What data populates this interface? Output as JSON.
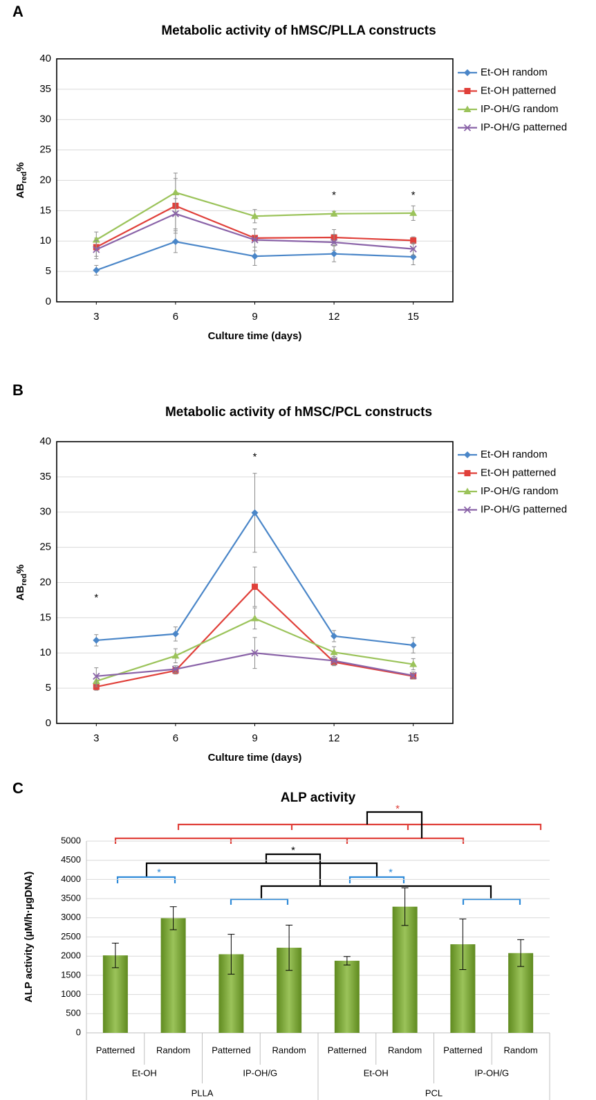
{
  "chart_data": [
    {
      "panel": "A",
      "type": "line",
      "title": "Metabolic activity of hMSC/PLLA constructs",
      "xlabel": "Culture time (days)",
      "ylabel": {
        "main": "AB",
        "sub": "red",
        "suffix": "%"
      },
      "x": [
        3,
        6,
        9,
        12,
        15
      ],
      "xlim": [
        1.5,
        16.5
      ],
      "xticks": [
        3,
        6,
        9,
        12,
        15
      ],
      "ylim": [
        0,
        40
      ],
      "yticks": [
        0,
        5,
        10,
        15,
        20,
        25,
        30,
        35,
        40
      ],
      "grid": true,
      "legend": "right",
      "series": [
        {
          "name": "Et-OH random",
          "color": "#4a86c8",
          "marker": "diamond",
          "values": [
            5.2,
            9.9,
            7.5,
            7.9,
            7.4
          ],
          "errors": [
            0.8,
            1.8,
            1.5,
            1.3,
            1.3
          ]
        },
        {
          "name": "Et-OH patterned",
          "color": "#e0403a",
          "marker": "square",
          "values": [
            9.0,
            15.8,
            10.5,
            10.6,
            10.1
          ],
          "errors": [
            1.5,
            4.5,
            1.5,
            1.3,
            0.6
          ]
        },
        {
          "name": "IP-OH/G random",
          "color": "#9bc35a",
          "marker": "triangle",
          "values": [
            10.2,
            18.0,
            14.1,
            14.5,
            14.6
          ],
          "errors": [
            1.3,
            3.2,
            1.1,
            0.4,
            1.2
          ]
        },
        {
          "name": "IP-OH/G patterned",
          "color": "#8a63a8",
          "marker": "cross",
          "values": [
            8.6,
            14.5,
            10.2,
            9.8,
            8.7
          ],
          "errors": [
            1.5,
            2.5,
            1.8,
            1.3,
            1.0
          ]
        }
      ],
      "annotations": [
        {
          "text": "*",
          "x": 12,
          "y": 17.5
        },
        {
          "text": "*",
          "x": 15,
          "y": 17.5
        }
      ]
    },
    {
      "panel": "B",
      "type": "line",
      "title": "Metabolic activity of hMSC/PCL constructs",
      "xlabel": "Culture time (days)",
      "ylabel": {
        "main": "AB",
        "sub": "red",
        "suffix": "%"
      },
      "x": [
        3,
        6,
        9,
        12,
        15
      ],
      "xlim": [
        1.5,
        16.5
      ],
      "xticks": [
        3,
        6,
        9,
        12,
        15
      ],
      "ylim": [
        0,
        40
      ],
      "yticks": [
        0,
        5,
        10,
        15,
        20,
        25,
        30,
        35,
        40
      ],
      "grid": true,
      "legend": "right",
      "series": [
        {
          "name": "Et-OH random",
          "color": "#4a86c8",
          "marker": "diamond",
          "values": [
            11.8,
            12.7,
            29.9,
            12.4,
            11.1
          ],
          "errors": [
            0.8,
            1.0,
            5.6,
            0.8,
            1.1
          ]
        },
        {
          "name": "Et-OH patterned",
          "color": "#e0403a",
          "marker": "square",
          "values": [
            5.2,
            7.5,
            19.4,
            8.7,
            6.7
          ],
          "errors": [
            0.5,
            0.5,
            2.8,
            0.5,
            0.4
          ]
        },
        {
          "name": "IP-OH/G random",
          "color": "#9bc35a",
          "marker": "triangle",
          "values": [
            6.0,
            9.6,
            14.9,
            10.1,
            8.4
          ],
          "errors": [
            0.8,
            1.0,
            1.5,
            0.8,
            0.8
          ]
        },
        {
          "name": "IP-OH/G patterned",
          "color": "#8a63a8",
          "marker": "cross",
          "values": [
            6.7,
            7.7,
            10.0,
            8.9,
            6.8
          ],
          "errors": [
            1.2,
            0.5,
            2.2,
            0.6,
            0.5
          ]
        }
      ],
      "annotations": [
        {
          "text": "*",
          "x": 3,
          "y": 17.8
        },
        {
          "text": "*",
          "x": 9,
          "y": 37.8
        }
      ]
    },
    {
      "panel": "C",
      "type": "bar",
      "title": "ALP activity",
      "ylabel": "ALP activity (µM/h·µgDNA)",
      "categories": [
        "Patterned",
        "Random",
        "Patterned",
        "Random",
        "Patterned",
        "Random",
        "Patterned",
        "Random"
      ],
      "groups": [
        "Et-OH",
        "IP-OH/G",
        "Et-OH",
        "IP-OH/G"
      ],
      "supergroups": [
        "PLLA",
        "PCL"
      ],
      "values": [
        2020,
        2990,
        2050,
        2220,
        1880,
        3290,
        2310,
        2080
      ],
      "errors": [
        320,
        300,
        520,
        590,
        110,
        490,
        660,
        350
      ],
      "color": "#9bc35a",
      "ylim": [
        0,
        5000
      ],
      "yticks": [
        0,
        500,
        1000,
        1500,
        2000,
        2500,
        3000,
        3500,
        4000,
        4500,
        5000
      ],
      "grid": true,
      "annotations": [
        {
          "text": "*",
          "color": "#e0403a"
        },
        {
          "text": "*",
          "color": "#000000"
        },
        {
          "text": "*",
          "color": "#2e8ad8"
        },
        {
          "text": "*",
          "color": "#2e8ad8"
        }
      ]
    }
  ]
}
